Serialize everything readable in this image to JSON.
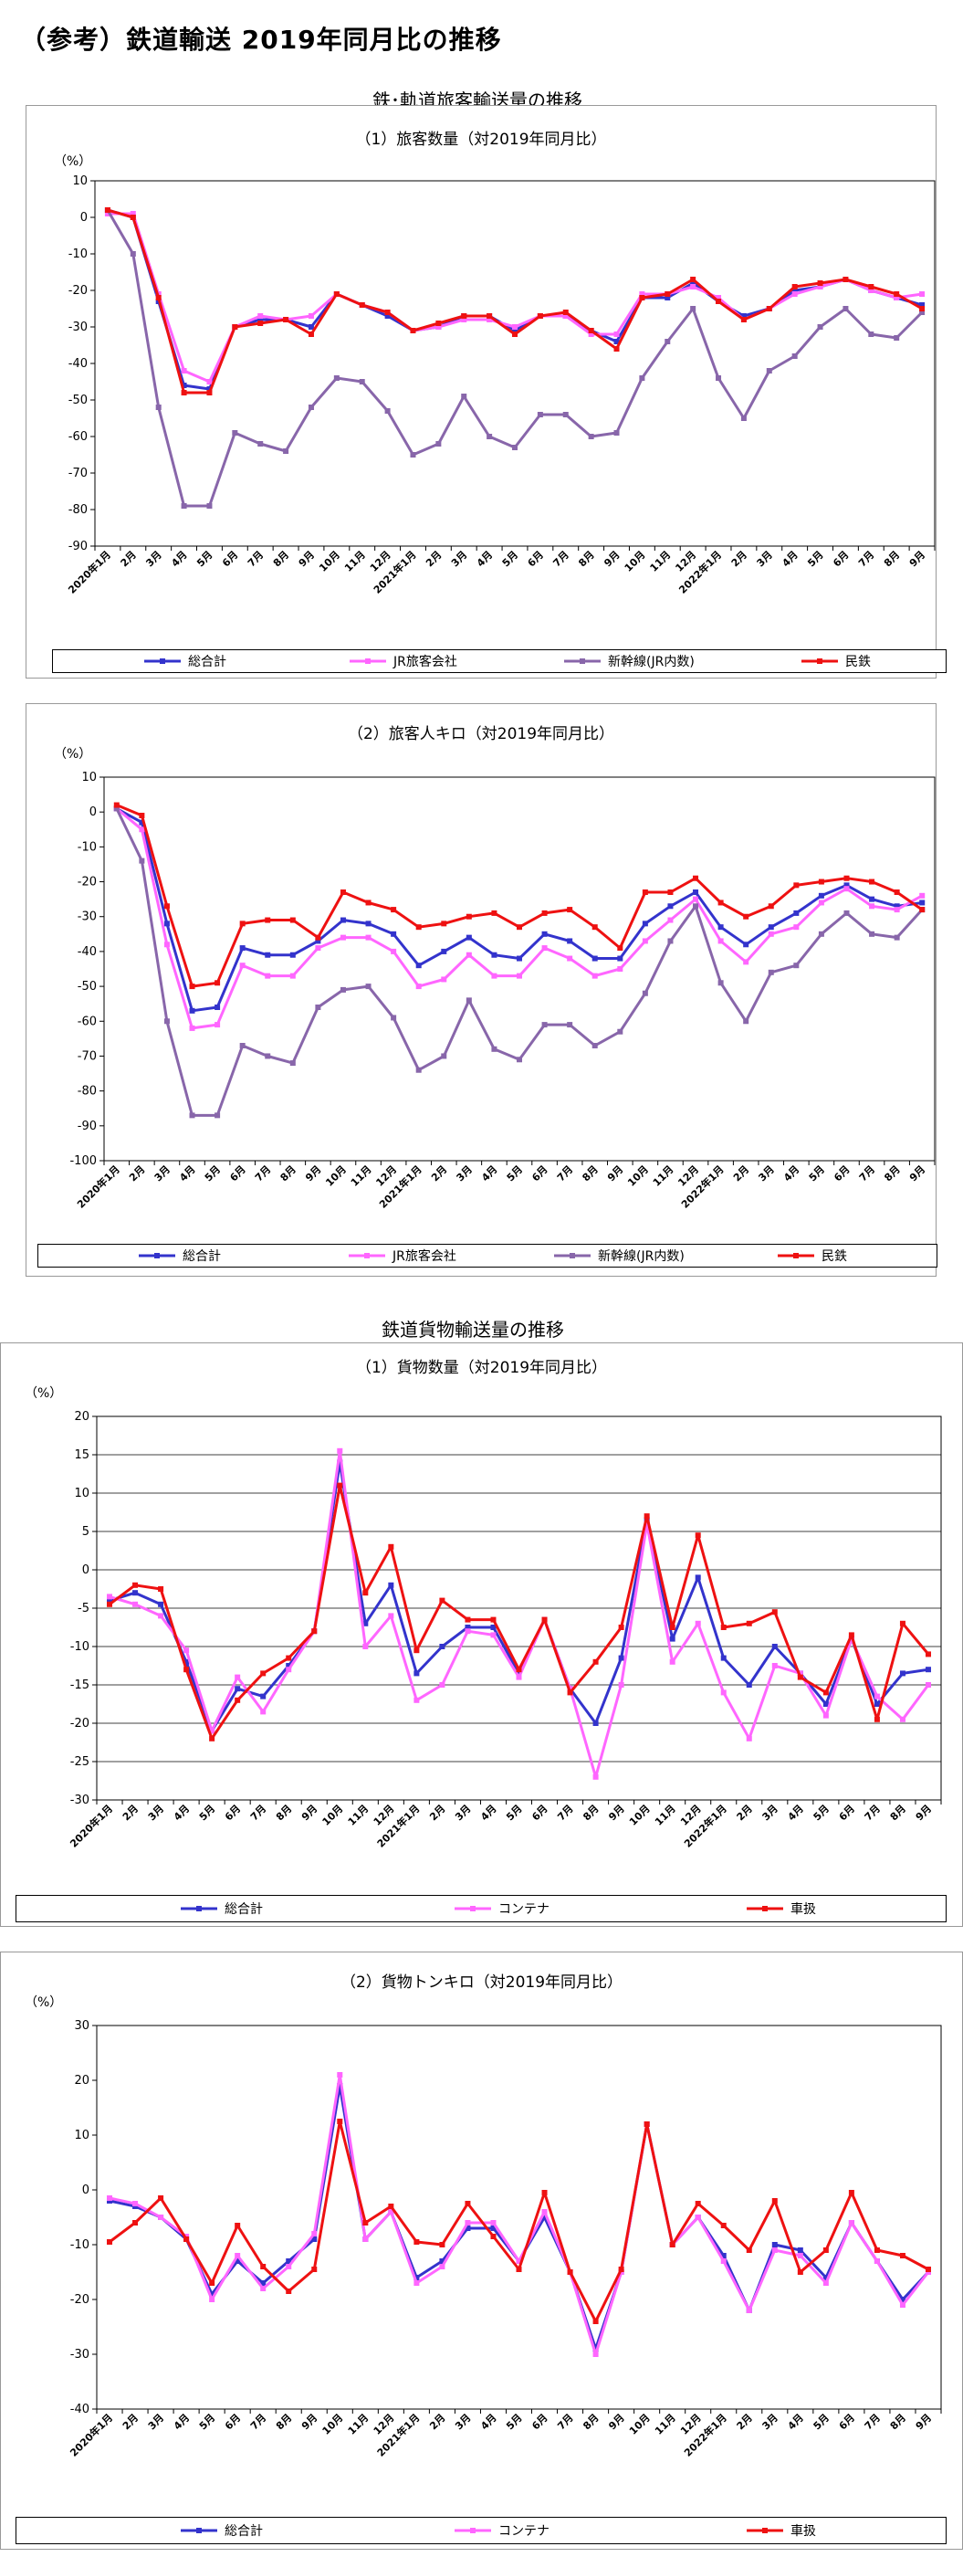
{
  "page": {
    "title": "（参考）鉄道輸送 2019年同月比の推移",
    "section_passenger": "鉄･軌道旅客輸送量の推移",
    "section_freight": "鉄道貨物輸送量の推移"
  },
  "colors": {
    "total": "#3333cc",
    "jr": "#ff66ff",
    "shinkansen": "#8866aa",
    "private": "#ee1111",
    "container": "#ff66ff",
    "wagon": "#ee1111"
  },
  "x_labels": [
    "2020年1月",
    "2月",
    "3月",
    "4月",
    "5月",
    "6月",
    "7月",
    "8月",
    "9月",
    "10月",
    "11月",
    "12月",
    "2021年1月",
    "2月",
    "3月",
    "4月",
    "5月",
    "6月",
    "7月",
    "8月",
    "9月",
    "10月",
    "11月",
    "12月",
    "2022年1月",
    "2月",
    "3月",
    "4月",
    "5月",
    "6月",
    "7月",
    "8月",
    "9月"
  ],
  "chart_data": [
    {
      "type": "line",
      "title": "（1）旅客数量（対2019年同月比）",
      "ylabel": "（%）",
      "ylim": [
        -90,
        10
      ],
      "yticks": [
        10,
        0,
        -10,
        -20,
        -30,
        -40,
        -50,
        -60,
        -70,
        -80,
        -90
      ],
      "grid": false,
      "legend": "bottom",
      "series": [
        {
          "name": "総合計",
          "values": [
            2,
            0,
            -23,
            -46,
            -47,
            -30,
            -28,
            -28,
            -30,
            -21,
            -24,
            -27,
            -31,
            -30,
            -27,
            -27,
            -31,
            -27,
            -27,
            -31,
            -34,
            -22,
            -22,
            -18,
            -23,
            -27,
            -25,
            -20,
            -19,
            -17,
            -20,
            -22,
            -24
          ]
        },
        {
          "name": "JR旅客会社",
          "values": [
            1,
            1,
            -21,
            -42,
            -45,
            -30,
            -27,
            -28,
            -27,
            -21,
            -24,
            -26,
            -31,
            -30,
            -28,
            -28,
            -30,
            -27,
            -27,
            -32,
            -32,
            -21,
            -21,
            -19,
            -22,
            -28,
            -25,
            -21,
            -19,
            -17,
            -20,
            -22,
            -21
          ]
        },
        {
          "name": "新幹線(JR内数)",
          "values": [
            2,
            -10,
            -52,
            -79,
            -79,
            -59,
            -62,
            -64,
            -52,
            -44,
            -45,
            -53,
            -65,
            -62,
            -49,
            -60,
            -63,
            -54,
            -54,
            -60,
            -59,
            -44,
            -34,
            -25,
            -44,
            -55,
            -42,
            -38,
            -30,
            -25,
            -32,
            -33,
            -26
          ]
        },
        {
          "name": "民鉄",
          "values": [
            2,
            0,
            -22,
            -48,
            -48,
            -30,
            -29,
            -28,
            -32,
            -21,
            -24,
            -26,
            -31,
            -29,
            -27,
            -27,
            -32,
            -27,
            -26,
            -31,
            -36,
            -22,
            -21,
            -17,
            -23,
            -28,
            -25,
            -19,
            -18,
            -17,
            -19,
            -21,
            -25
          ]
        }
      ]
    },
    {
      "type": "line",
      "title": "（2）旅客人キロ（対2019年同月比）",
      "ylabel": "（%）",
      "ylim": [
        -100,
        10
      ],
      "yticks": [
        10,
        0,
        -10,
        -20,
        -30,
        -40,
        -50,
        -60,
        -70,
        -80,
        -90,
        -100
      ],
      "grid": false,
      "legend": "bottom",
      "series": [
        {
          "name": "総合計",
          "values": [
            1,
            -3,
            -32,
            -57,
            -56,
            -39,
            -41,
            -41,
            -37,
            -31,
            -32,
            -35,
            -44,
            -40,
            -36,
            -41,
            -42,
            -35,
            -37,
            -42,
            -42,
            -32,
            -27,
            -23,
            -33,
            -38,
            -33,
            -29,
            -24,
            -21,
            -25,
            -27,
            -26
          ]
        },
        {
          "name": "JR旅客会社",
          "values": [
            1,
            -5,
            -38,
            -62,
            -61,
            -44,
            -47,
            -47,
            -39,
            -36,
            -36,
            -40,
            -50,
            -48,
            -41,
            -47,
            -47,
            -39,
            -42,
            -47,
            -45,
            -37,
            -31,
            -25,
            -37,
            -43,
            -35,
            -33,
            -26,
            -22,
            -27,
            -28,
            -24
          ]
        },
        {
          "name": "新幹線(JR内数)",
          "values": [
            1,
            -14,
            -60,
            -87,
            -87,
            -67,
            -70,
            -72,
            -56,
            -51,
            -50,
            -59,
            -74,
            -70,
            -54,
            -68,
            -71,
            -61,
            -61,
            -67,
            -63,
            -52,
            -37,
            -27,
            -49,
            -60,
            -46,
            -44,
            -35,
            -29,
            -35,
            -36,
            -28
          ]
        },
        {
          "name": "民鉄",
          "values": [
            2,
            -1,
            -27,
            -50,
            -49,
            -32,
            -31,
            -31,
            -36,
            -23,
            -26,
            -28,
            -33,
            -32,
            -30,
            -29,
            -33,
            -29,
            -28,
            -33,
            -39,
            -23,
            -23,
            -19,
            -26,
            -30,
            -27,
            -21,
            -20,
            -19,
            -20,
            -23,
            -28
          ]
        }
      ]
    },
    {
      "type": "line",
      "title": "（1）貨物数量（対2019年同月比）",
      "ylabel": "（%）",
      "ylim": [
        -30,
        20
      ],
      "yticks": [
        20,
        15,
        10,
        5,
        0,
        -5,
        -10,
        -15,
        -20,
        -25,
        -30
      ],
      "grid": true,
      "legend": "bottom",
      "series": [
        {
          "name": "総合計",
          "values": [
            -4,
            -3,
            -4.5,
            -12,
            -21,
            -15.5,
            -16.5,
            -12.5,
            -8,
            14,
            -7,
            -2,
            -13.5,
            -10,
            -7.5,
            -7.5,
            -13.5,
            -6.5,
            -15.5,
            -20,
            -11.5,
            6.5,
            -9,
            -1,
            -11.5,
            -15,
            -10,
            -13.5,
            -17.5,
            -9,
            -17.5,
            -13.5,
            -13
          ]
        },
        {
          "name": "コンテナ",
          "values": [
            -3.5,
            -4.5,
            -6,
            -10.5,
            -21,
            -14,
            -18.5,
            -13,
            -8,
            15.5,
            -10,
            -6,
            -17,
            -15,
            -8,
            -8.5,
            -14,
            -6.5,
            -15.5,
            -27,
            -15,
            6,
            -12,
            -7,
            -16,
            -22,
            -12.5,
            -13.5,
            -19,
            -9,
            -16.5,
            -19.5,
            -15
          ]
        },
        {
          "name": "車扱",
          "values": [
            -4.5,
            -2,
            -2.5,
            -13,
            -22,
            -17,
            -13.5,
            -11.5,
            -8,
            11,
            -3,
            3,
            -10.5,
            -4,
            -6.5,
            -6.5,
            -13,
            -6.5,
            -16,
            -12,
            -7.5,
            7,
            -7.5,
            4.5,
            -7.5,
            -7,
            -5.5,
            -14,
            -16,
            -8.5,
            -19.5,
            -7,
            -11
          ]
        }
      ]
    },
    {
      "type": "line",
      "title": "（2）貨物トンキロ（対2019年同月比）",
      "ylabel": "（%）",
      "ylim": [
        -40,
        30
      ],
      "yticks": [
        30,
        20,
        10,
        0,
        -10,
        -20,
        -30,
        -40
      ],
      "grid": false,
      "legend": "bottom",
      "series": [
        {
          "name": "総合計",
          "values": [
            -2,
            -3,
            -5,
            -9,
            -19,
            -13,
            -17,
            -13,
            -9,
            19,
            -9,
            -4,
            -16,
            -13,
            -7,
            -7,
            -13,
            -5,
            -15,
            -29,
            -15,
            12,
            -10,
            -5,
            -12,
            -22,
            -10,
            -11,
            -16,
            -6,
            -13,
            -20,
            -15
          ]
        },
        {
          "name": "コンテナ",
          "values": [
            -1.5,
            -2.5,
            -5,
            -8.5,
            -20,
            -12,
            -18,
            -14,
            -8,
            21,
            -9,
            -4,
            -17,
            -14,
            -6,
            -6,
            -13,
            -4,
            -15,
            -30,
            -15,
            12,
            -10,
            -5,
            -13,
            -22,
            -11,
            -12,
            -17,
            -6,
            -13,
            -21,
            -15
          ]
        },
        {
          "name": "車扱",
          "values": [
            -9.5,
            -6,
            -1.5,
            -9,
            -17,
            -6.5,
            -14,
            -18.5,
            -14.5,
            12.5,
            -6,
            -3,
            -9.5,
            -10,
            -2.5,
            -8.5,
            -14.5,
            -0.5,
            -15,
            -24,
            -14.5,
            12,
            -10,
            -2.5,
            -6.5,
            -11,
            -2,
            -15,
            -11,
            -0.5,
            -11,
            -12,
            -14.5
          ]
        }
      ]
    }
  ]
}
